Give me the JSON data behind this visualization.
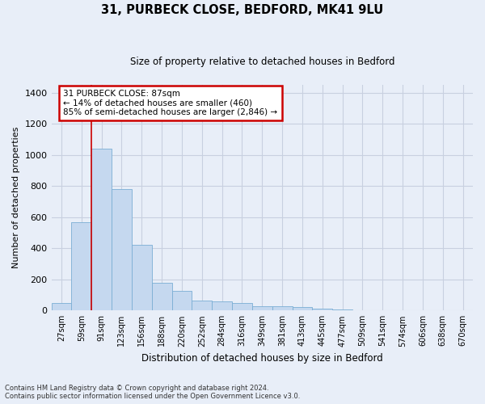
{
  "title_line1": "31, PURBECK CLOSE, BEDFORD, MK41 9LU",
  "title_line2": "Size of property relative to detached houses in Bedford",
  "xlabel": "Distribution of detached houses by size in Bedford",
  "ylabel": "Number of detached properties",
  "footnote1": "Contains HM Land Registry data © Crown copyright and database right 2024.",
  "footnote2": "Contains public sector information licensed under the Open Government Licence v3.0.",
  "bar_labels": [
    "27sqm",
    "59sqm",
    "91sqm",
    "123sqm",
    "156sqm",
    "188sqm",
    "220sqm",
    "252sqm",
    "284sqm",
    "316sqm",
    "349sqm",
    "381sqm",
    "413sqm",
    "445sqm",
    "477sqm",
    "509sqm",
    "541sqm",
    "574sqm",
    "606sqm",
    "638sqm",
    "670sqm"
  ],
  "bar_values": [
    50,
    570,
    1040,
    780,
    420,
    180,
    125,
    65,
    60,
    50,
    30,
    27,
    20,
    10,
    8,
    0,
    0,
    0,
    0,
    0,
    0
  ],
  "bar_color": "#c5d8ef",
  "bar_edge_color": "#7baed4",
  "grid_color": "#c8d0e0",
  "background_color": "#e8eef8",
  "vline_color": "#cc0000",
  "annotation_text": "31 PURBECK CLOSE: 87sqm\n← 14% of detached houses are smaller (460)\n85% of semi-detached houses are larger (2,846) →",
  "annotation_box_color": "#ffffff",
  "annotation_box_edge_color": "#cc0000",
  "ylim": [
    0,
    1450
  ],
  "yticks": [
    0,
    200,
    400,
    600,
    800,
    1000,
    1200,
    1400
  ],
  "vline_position": 1.5
}
